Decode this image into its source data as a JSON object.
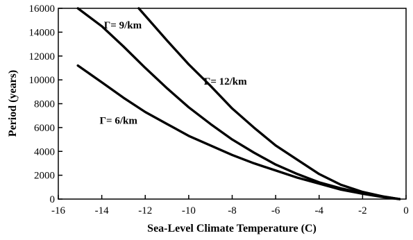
{
  "chart_data": {
    "type": "line",
    "title": "",
    "xlabel": "Sea-Level Climate Temperature (C)",
    "ylabel": "Period (years)",
    "xlim": [
      -16,
      0
    ],
    "ylim": [
      0,
      16000
    ],
    "xticks": [
      -16,
      -14,
      -12,
      -10,
      -8,
      -6,
      -4,
      -2,
      0
    ],
    "yticks": [
      0,
      2000,
      4000,
      6000,
      8000,
      10000,
      12000,
      14000,
      16000
    ],
    "grid": false,
    "legend": "none",
    "annotations": [
      {
        "text": "Γ= 6/km",
        "x": -14.1,
        "y": 6300
      },
      {
        "text": "Γ= 9/km",
        "x": -13.9,
        "y": 14300
      },
      {
        "text": "Γ= 12/km",
        "x": -9.3,
        "y": 9600
      }
    ],
    "series": [
      {
        "x": [
          -15.1,
          -14,
          -13,
          -12,
          -11,
          -10,
          -9,
          -8,
          -7,
          -6,
          -5,
          -4,
          -3,
          -2,
          -1,
          -0.3
        ],
        "y": [
          11200,
          9800,
          8500,
          7300,
          6300,
          5300,
          4500,
          3700,
          3000,
          2400,
          1800,
          1300,
          800,
          450,
          150,
          0
        ]
      },
      {
        "x": [
          -15.1,
          -14,
          -13,
          -12,
          -11,
          -10,
          -9,
          -8,
          -7,
          -6,
          -5,
          -4,
          -3,
          -2,
          -1,
          -0.3
        ],
        "y": [
          16000,
          14500,
          12800,
          11000,
          9300,
          7700,
          6300,
          5000,
          3900,
          2900,
          2100,
          1400,
          900,
          500,
          200,
          0
        ]
      },
      {
        "x": [
          -12.3,
          -11,
          -10,
          -9,
          -8,
          -7,
          -6,
          -5,
          -4,
          -3,
          -2,
          -1,
          -0.3
        ],
        "y": [
          16000,
          13300,
          11300,
          9500,
          7600,
          6000,
          4500,
          3300,
          2100,
          1200,
          600,
          200,
          0
        ]
      }
    ]
  }
}
